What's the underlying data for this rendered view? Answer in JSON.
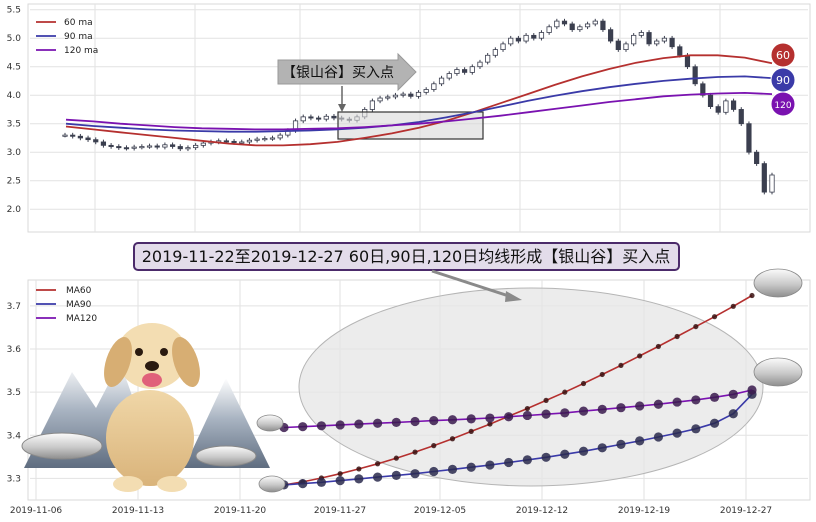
{
  "colors": {
    "ma60": "#b5302f",
    "ma90": "#3a3aa8",
    "ma120": "#7a12b0",
    "grid": "#e2e2e2",
    "plot_bg": "#ffffff",
    "candle_dark": "#3b3f4f",
    "box_fill": "#dcdcdc",
    "ellipse_fill": "#e6e6e6",
    "banner_bg": "#e3dcea",
    "banner_border": "#4b2a6a"
  },
  "annotations": {
    "arrow_label": "【银山谷】买入点",
    "banner": "2019-11-22至2019-12-27 60日,90日,120日均线形成【银山谷】买入点",
    "badge_60": "60",
    "badge_90": "90",
    "badge_120": "120"
  },
  "illustration": {
    "dog": "dog-mascot",
    "ingot": "silver-ingot-icon",
    "mountains": "snow-mountain"
  },
  "chart_data": [
    {
      "type": "candlestick",
      "title": "",
      "ylim": [
        1.6,
        5.6
      ],
      "yticks": [
        "5.5",
        "5.0",
        "4.5",
        "4.0",
        "3.5",
        "3.0",
        "2.5",
        "2.0"
      ],
      "grid": true,
      "legend_position": "top-left",
      "legend": [
        "60 ma",
        "90 ma",
        "120 ma"
      ],
      "closes": [
        3.3,
        3.28,
        3.25,
        3.22,
        3.18,
        3.12,
        3.1,
        3.08,
        3.07,
        3.09,
        3.1,
        3.11,
        3.09,
        3.13,
        3.1,
        3.06,
        3.08,
        3.12,
        3.16,
        3.18,
        3.2,
        3.19,
        3.17,
        3.18,
        3.21,
        3.23,
        3.24,
        3.25,
        3.3,
        3.38,
        3.55,
        3.62,
        3.6,
        3.58,
        3.63,
        3.6,
        3.58,
        3.56,
        3.62,
        3.75,
        3.9,
        3.95,
        3.97,
        4.0,
        4.02,
        3.98,
        4.05,
        4.1,
        4.2,
        4.3,
        4.38,
        4.45,
        4.4,
        4.5,
        4.58,
        4.7,
        4.8,
        4.9,
        5.0,
        4.95,
        5.05,
        5.0,
        5.1,
        5.2,
        5.3,
        5.25,
        5.15,
        5.2,
        5.25,
        5.3,
        5.15,
        4.95,
        4.8,
        4.9,
        5.05,
        5.1,
        4.9,
        4.95,
        5.0,
        4.85,
        4.7,
        4.5,
        4.2,
        4.0,
        3.8,
        3.7,
        3.9,
        3.75,
        3.5,
        3.0,
        2.8,
        2.3,
        2.6
      ],
      "series": [
        {
          "name": "60 ma",
          "values": [
            3.45,
            3.4,
            3.35,
            3.3,
            3.25,
            3.2,
            3.15,
            3.12,
            3.12,
            3.14,
            3.18,
            3.25,
            3.33,
            3.43,
            3.55,
            3.7,
            3.86,
            4.02,
            4.18,
            4.33,
            4.46,
            4.57,
            4.65,
            4.7,
            4.7,
            4.66,
            4.56
          ]
        },
        {
          "name": "90 ma",
          "values": [
            3.5,
            3.46,
            3.43,
            3.4,
            3.38,
            3.37,
            3.36,
            3.36,
            3.37,
            3.38,
            3.4,
            3.43,
            3.47,
            3.53,
            3.61,
            3.7,
            3.8,
            3.9,
            3.99,
            4.07,
            4.14,
            4.2,
            4.25,
            4.29,
            4.32,
            4.33,
            4.3
          ]
        },
        {
          "name": "120 ma",
          "values": [
            3.57,
            3.54,
            3.5,
            3.47,
            3.44,
            3.42,
            3.41,
            3.4,
            3.4,
            3.41,
            3.42,
            3.44,
            3.47,
            3.5,
            3.54,
            3.59,
            3.64,
            3.7,
            3.76,
            3.82,
            3.88,
            3.93,
            3.98,
            4.01,
            4.03,
            4.04,
            4.02
          ]
        }
      ]
    },
    {
      "type": "line",
      "title": "",
      "ylim": [
        3.25,
        3.76
      ],
      "yticks": [
        "3.7",
        "3.6",
        "3.5",
        "3.4",
        "3.3"
      ],
      "xticks": [
        "2019-11-06",
        "2019-11-13",
        "2019-11-20",
        "2019-11-27",
        "2019-12-05",
        "2019-12-12",
        "2019-12-19",
        "2019-12-27"
      ],
      "grid": true,
      "legend_position": "top-left",
      "legend": [
        "MA60",
        "MA90",
        "MA120"
      ],
      "series": [
        {
          "name": "MA60",
          "values": [
            3.285,
            3.292,
            3.301,
            3.311,
            3.322,
            3.334,
            3.347,
            3.361,
            3.376,
            3.392,
            3.409,
            3.426,
            3.444,
            3.462,
            3.481,
            3.5,
            3.52,
            3.541,
            3.562,
            3.584,
            3.606,
            3.629,
            3.652,
            3.675,
            3.699,
            3.724
          ]
        },
        {
          "name": "MA90",
          "values": [
            3.285,
            3.288,
            3.291,
            3.295,
            3.299,
            3.303,
            3.307,
            3.311,
            3.316,
            3.321,
            3.326,
            3.331,
            3.337,
            3.343,
            3.349,
            3.356,
            3.363,
            3.371,
            3.379,
            3.387,
            3.396,
            3.405,
            3.415,
            3.428,
            3.45,
            3.495
          ]
        },
        {
          "name": "MA120",
          "values": [
            3.418,
            3.42,
            3.422,
            3.424,
            3.426,
            3.428,
            3.43,
            3.432,
            3.434,
            3.436,
            3.438,
            3.44,
            3.443,
            3.446,
            3.449,
            3.452,
            3.456,
            3.46,
            3.464,
            3.468,
            3.472,
            3.477,
            3.482,
            3.488,
            3.495,
            3.505
          ]
        }
      ]
    }
  ]
}
